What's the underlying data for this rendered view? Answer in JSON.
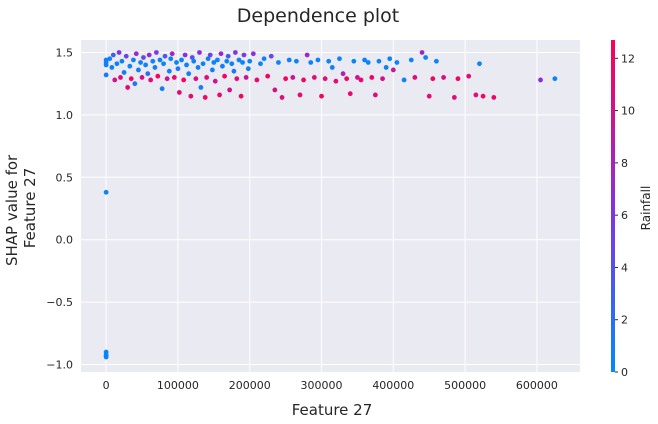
{
  "chart_data": {
    "type": "scatter",
    "title": "Dependence plot",
    "xlabel": "Feature 27",
    "ylabel_lines": [
      "SHAP value for",
      "Feature 27"
    ],
    "colorbar_label": "Rainfall",
    "xlim": [
      -35000,
      660000
    ],
    "ylim": [
      -1.06,
      1.6
    ],
    "x_ticks": [
      0,
      100000,
      200000,
      300000,
      400000,
      500000,
      600000
    ],
    "y_ticks": [
      -1.0,
      -0.5,
      0.0,
      0.5,
      1.0,
      1.5
    ],
    "y_tick_labels": [
      "−1.0",
      "−0.5",
      "0.0",
      "0.5",
      "1.0",
      "1.5"
    ],
    "colorbar_range": [
      0,
      12.7
    ],
    "colorbar_ticks": [
      0,
      2,
      4,
      6,
      8,
      10,
      12
    ],
    "grid": true,
    "colormap": [
      "#008afb",
      "#8a2fe0",
      "#ff0052"
    ],
    "facecolor": "#eaeaf2",
    "points": [
      [
        0,
        0.38,
        0.5
      ],
      [
        0,
        -0.9,
        0.3
      ],
      [
        0,
        -0.92,
        0.3
      ],
      [
        0,
        -0.93,
        0.3
      ],
      [
        0,
        -0.94,
        0.4
      ],
      [
        0,
        1.42,
        0.5
      ],
      [
        0,
        1.4,
        0.5
      ],
      [
        0,
        1.32,
        1.0
      ],
      [
        0,
        1.44,
        1.0
      ],
      [
        5000,
        1.45,
        0.5
      ],
      [
        8000,
        1.38,
        1.0
      ],
      [
        10000,
        1.48,
        3.0
      ],
      [
        12000,
        1.28,
        10.0
      ],
      [
        15000,
        1.41,
        0.5
      ],
      [
        18000,
        1.5,
        6.0
      ],
      [
        20000,
        1.3,
        11.0
      ],
      [
        22000,
        1.43,
        0.6
      ],
      [
        25000,
        1.34,
        0.8
      ],
      [
        28000,
        1.47,
        5.0
      ],
      [
        30000,
        1.22,
        11.5
      ],
      [
        33000,
        1.39,
        0.4
      ],
      [
        35000,
        1.29,
        12.0
      ],
      [
        38000,
        1.44,
        0.5
      ],
      [
        40000,
        1.25,
        1.5
      ],
      [
        42000,
        1.49,
        7.0
      ],
      [
        45000,
        1.36,
        0.9
      ],
      [
        48000,
        1.42,
        0.7
      ],
      [
        50000,
        1.3,
        10.5
      ],
      [
        52000,
        1.46,
        4.5
      ],
      [
        55000,
        1.4,
        0.4
      ],
      [
        58000,
        1.33,
        2.0
      ],
      [
        60000,
        1.48,
        6.5
      ],
      [
        62000,
        1.28,
        11.0
      ],
      [
        65000,
        1.43,
        0.5
      ],
      [
        68000,
        1.38,
        1.2
      ],
      [
        70000,
        1.5,
        5.5
      ],
      [
        72000,
        1.31,
        12.0
      ],
      [
        75000,
        1.44,
        0.6
      ],
      [
        78000,
        1.21,
        1.0
      ],
      [
        80000,
        1.41,
        0.5
      ],
      [
        82000,
        1.47,
        3.5
      ],
      [
        85000,
        1.29,
        10.0
      ],
      [
        88000,
        1.35,
        0.8
      ],
      [
        90000,
        1.45,
        0.4
      ],
      [
        92000,
        1.49,
        7.5
      ],
      [
        95000,
        1.3,
        11.5
      ],
      [
        98000,
        1.42,
        0.6
      ],
      [
        100000,
        1.37,
        1.5
      ],
      [
        102000,
        1.18,
        11.0
      ],
      [
        105000,
        1.44,
        0.5
      ],
      [
        108000,
        1.28,
        12.0
      ],
      [
        110000,
        1.48,
        6.0
      ],
      [
        112000,
        1.4,
        0.5
      ],
      [
        115000,
        1.33,
        1.0
      ],
      [
        118000,
        1.15,
        11.5
      ],
      [
        120000,
        1.46,
        4.0
      ],
      [
        122000,
        1.43,
        0.4
      ],
      [
        125000,
        1.29,
        10.5
      ],
      [
        128000,
        1.38,
        0.9
      ],
      [
        130000,
        1.5,
        6.5
      ],
      [
        132000,
        1.22,
        1.0
      ],
      [
        135000,
        1.41,
        0.5
      ],
      [
        138000,
        1.14,
        12.0
      ],
      [
        140000,
        1.3,
        11.0
      ],
      [
        142000,
        1.45,
        0.6
      ],
      [
        145000,
        1.48,
        5.0
      ],
      [
        148000,
        1.36,
        0.7
      ],
      [
        150000,
        1.42,
        0.5
      ],
      [
        152000,
        1.27,
        10.0
      ],
      [
        155000,
        1.44,
        0.4
      ],
      [
        158000,
        1.16,
        11.5
      ],
      [
        160000,
        1.49,
        7.0
      ],
      [
        162000,
        1.39,
        0.8
      ],
      [
        165000,
        1.31,
        12.0
      ],
      [
        168000,
        1.43,
        0.5
      ],
      [
        170000,
        1.47,
        3.0
      ],
      [
        172000,
        1.2,
        10.5
      ],
      [
        175000,
        1.41,
        0.6
      ],
      [
        178000,
        1.35,
        1.2
      ],
      [
        180000,
        1.5,
        6.0
      ],
      [
        182000,
        1.29,
        11.0
      ],
      [
        185000,
        1.44,
        0.5
      ],
      [
        188000,
        1.15,
        12.0
      ],
      [
        190000,
        1.42,
        0.4
      ],
      [
        192000,
        1.48,
        5.5
      ],
      [
        195000,
        1.3,
        10.0
      ],
      [
        198000,
        1.37,
        0.9
      ],
      [
        200000,
        1.43,
        0.5
      ],
      [
        205000,
        1.49,
        6.5
      ],
      [
        210000,
        1.28,
        11.5
      ],
      [
        215000,
        1.41,
        0.6
      ],
      [
        220000,
        1.45,
        0.4
      ],
      [
        225000,
        1.31,
        12.0
      ],
      [
        230000,
        1.47,
        4.5
      ],
      [
        235000,
        1.2,
        10.5
      ],
      [
        240000,
        1.42,
        0.5
      ],
      [
        245000,
        1.14,
        11.0
      ],
      [
        250000,
        1.29,
        12.0
      ],
      [
        255000,
        1.44,
        0.6
      ],
      [
        260000,
        1.3,
        10.0
      ],
      [
        265000,
        1.43,
        0.5
      ],
      [
        270000,
        1.16,
        11.5
      ],
      [
        275000,
        1.28,
        12.0
      ],
      [
        280000,
        1.48,
        7.0
      ],
      [
        285000,
        1.42,
        0.4
      ],
      [
        290000,
        1.3,
        11.0
      ],
      [
        295000,
        1.44,
        0.6
      ],
      [
        300000,
        1.15,
        12.0
      ],
      [
        305000,
        1.29,
        10.5
      ],
      [
        310000,
        1.43,
        0.5
      ],
      [
        315000,
        1.38,
        1.0
      ],
      [
        320000,
        1.27,
        11.0
      ],
      [
        325000,
        1.45,
        0.4
      ],
      [
        330000,
        1.33,
        8.5
      ],
      [
        335000,
        1.29,
        12.0
      ],
      [
        340000,
        1.17,
        11.5
      ],
      [
        345000,
        1.43,
        0.5
      ],
      [
        350000,
        1.3,
        10.0
      ],
      [
        355000,
        1.28,
        11.5
      ],
      [
        360000,
        1.44,
        0.6
      ],
      [
        365000,
        1.42,
        0.5
      ],
      [
        370000,
        1.3,
        12.0
      ],
      [
        375000,
        1.16,
        11.0
      ],
      [
        380000,
        1.43,
        0.5
      ],
      [
        385000,
        1.29,
        10.5
      ],
      [
        390000,
        1.38,
        0.8
      ],
      [
        395000,
        1.45,
        0.4
      ],
      [
        400000,
        1.36,
        9.5
      ],
      [
        405000,
        1.42,
        0.5
      ],
      [
        415000,
        1.28,
        0.6
      ],
      [
        425000,
        1.44,
        0.5
      ],
      [
        430000,
        1.3,
        11.0
      ],
      [
        440000,
        1.5,
        7.5
      ],
      [
        445000,
        1.46,
        0.5
      ],
      [
        450000,
        1.15,
        11.5
      ],
      [
        455000,
        1.29,
        12.0
      ],
      [
        460000,
        1.43,
        0.5
      ],
      [
        470000,
        1.3,
        10.5
      ],
      [
        485000,
        1.14,
        11.0
      ],
      [
        490000,
        1.29,
        12.0
      ],
      [
        505000,
        1.31,
        11.5
      ],
      [
        515000,
        1.16,
        11.0
      ],
      [
        520000,
        1.41,
        0.6
      ],
      [
        525000,
        1.15,
        12.0
      ],
      [
        540000,
        1.14,
        11.5
      ],
      [
        605000,
        1.28,
        6.5
      ],
      [
        625000,
        1.29,
        0.5
      ]
    ]
  }
}
